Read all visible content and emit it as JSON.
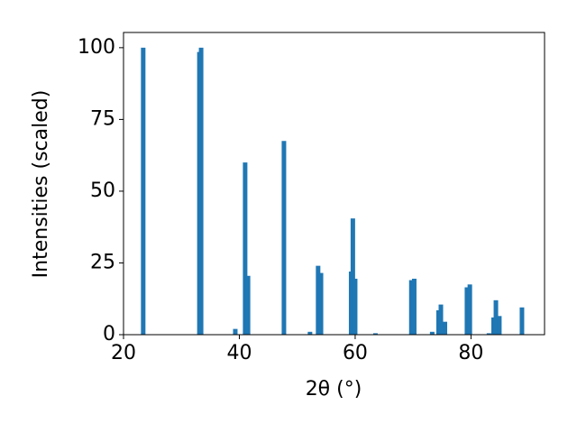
{
  "chart_data": {
    "type": "bar",
    "x": [
      23.4,
      33.1,
      33.4,
      39.3,
      41.0,
      41.5,
      47.7,
      52.2,
      53.6,
      54.1,
      59.3,
      59.6,
      60.0,
      63.5,
      69.7,
      70.2,
      73.3,
      74.4,
      74.8,
      75.5,
      79.3,
      79.8,
      83.1,
      83.9,
      84.3,
      84.9,
      88.8
    ],
    "values": [
      100,
      98.5,
      100,
      2,
      60,
      20.5,
      67.5,
      1,
      24,
      21.5,
      22,
      40.5,
      19.5,
      0.5,
      19,
      19.5,
      1,
      8.5,
      10.5,
      4.5,
      16.5,
      17.5,
      0.5,
      6,
      12,
      6.5,
      9.5
    ],
    "color": "#1f77b4",
    "xlabel": "2θ (°)",
    "ylabel": "Intensities (scaled)",
    "xlim": [
      20,
      92.7
    ],
    "xticks": [
      20,
      40,
      60,
      80
    ],
    "ylim": [
      0,
      105.3
    ],
    "yticks": [
      0,
      25,
      50,
      75,
      100
    ]
  }
}
